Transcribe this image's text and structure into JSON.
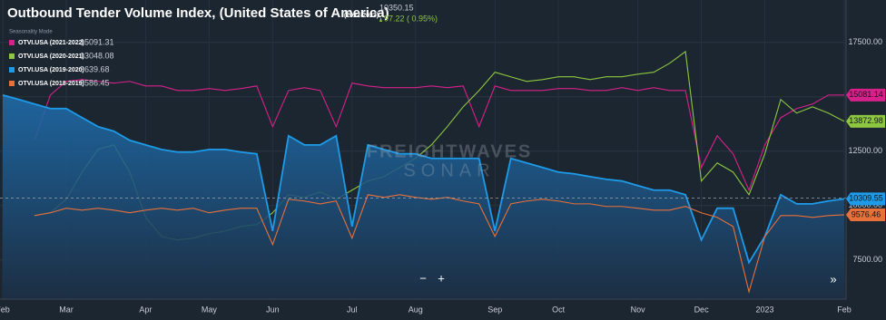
{
  "chart_data": {
    "type": "line",
    "title": "Outbound Tender Volume Index, (United States of America)",
    "title_period": "(2022-2023)",
    "current_value": 10350.15,
    "change": "97.22 ( 0.95%)",
    "legend_title": "Seasonality Mode",
    "watermark": [
      "FREIGHTWAVES",
      "SONAR"
    ],
    "controls": [
      "−",
      "+",
      "»"
    ],
    "categories": [
      "Feb",
      null,
      null,
      null,
      "Mar",
      null,
      null,
      null,
      null,
      "Apr",
      null,
      null,
      null,
      "May",
      null,
      null,
      null,
      "Jun",
      null,
      null,
      null,
      null,
      "Jul",
      null,
      null,
      null,
      "Aug",
      null,
      null,
      null,
      null,
      "Sep",
      null,
      null,
      null,
      "Oct",
      null,
      null,
      null,
      null,
      "Nov",
      null,
      null,
      null,
      "Dec",
      null,
      null,
      null,
      "2023",
      null,
      null,
      null,
      null,
      "Feb"
    ],
    "ylim": [
      5700,
      19450
    ],
    "yticks": [
      {
        "value": 7500,
        "label": "7500.00"
      },
      {
        "value": 10000,
        "label": "10000.00"
      },
      {
        "value": 12500,
        "label": "12500.00"
      },
      {
        "value": 15000,
        "label": "15000.00"
      },
      {
        "value": 17500,
        "label": "17500.00"
      }
    ],
    "grid": true,
    "series": [
      {
        "name": "OTVI.USA (2021-2022)",
        "color": "#d6218a",
        "hover_value": "15091.31",
        "values": [
          null,
          null,
          13000,
          15080,
          15710,
          15790,
          15710,
          15630,
          15710,
          15500,
          15500,
          15290,
          15290,
          15380,
          15290,
          15380,
          15500,
          13630,
          15290,
          15420,
          15290,
          13630,
          15630,
          15500,
          15420,
          15420,
          15420,
          15500,
          15420,
          15500,
          13630,
          15500,
          15290,
          15290,
          15290,
          15380,
          15380,
          15290,
          15290,
          15420,
          15290,
          15420,
          15290,
          15290,
          11750,
          13210,
          12380,
          10710,
          12790,
          14040,
          14460,
          14670,
          15080,
          15081.14
        ]
      },
      {
        "name": "OTVI.USA (2020-2021)",
        "color": "#8dc63f",
        "hover_value": "13048.08",
        "values": [
          null,
          null,
          9540,
          9670,
          10290,
          11540,
          12580,
          12790,
          11540,
          9460,
          8580,
          8420,
          8500,
          8710,
          8830,
          9040,
          9130,
          9670,
          10500,
          10380,
          10630,
          10290,
          10710,
          11130,
          11330,
          11750,
          12170,
          12790,
          13630,
          14540,
          15290,
          16130,
          15920,
          15710,
          15790,
          15920,
          15920,
          15790,
          15920,
          15920,
          16040,
          16130,
          16540,
          17080,
          11130,
          11960,
          11540,
          10500,
          12380,
          14880,
          14250,
          14540,
          14250,
          13872.98
        ]
      },
      {
        "name": "OTVI.USA (2019-2020)",
        "color": "#1e9be8",
        "hover_value": "9639.68",
        "area": true,
        "values": [
          15080,
          14880,
          14670,
          14460,
          14460,
          14040,
          13630,
          13420,
          13000,
          12790,
          12580,
          12460,
          12460,
          12580,
          12580,
          12460,
          12380,
          8830,
          13210,
          12790,
          12790,
          13210,
          9040,
          12790,
          12580,
          12380,
          12380,
          12170,
          12170,
          12170,
          12170,
          8830,
          12170,
          11960,
          11750,
          11540,
          11460,
          11330,
          11210,
          11130,
          10920,
          10710,
          10710,
          10500,
          8420,
          9880,
          9880,
          7380,
          8580,
          10500,
          10080,
          10080,
          10210,
          10309.55
        ]
      },
      {
        "name": "OTVI.USA (2018-2019)",
        "color": "#e8703a",
        "hover_value": "9586.45",
        "values": [
          null,
          null,
          9540,
          9670,
          9880,
          9790,
          9880,
          9790,
          9670,
          9790,
          9880,
          9790,
          9880,
          9670,
          9790,
          9880,
          9880,
          8210,
          10290,
          10210,
          10080,
          10210,
          8500,
          10500,
          10380,
          10500,
          10380,
          10290,
          10380,
          10210,
          10080,
          8580,
          10080,
          10210,
          10290,
          10210,
          10080,
          10080,
          9960,
          9960,
          9880,
          9790,
          9790,
          9960,
          9670,
          9460,
          9040,
          6040,
          8580,
          9540,
          9540,
          9460,
          9540,
          9576.46
        ]
      }
    ]
  }
}
